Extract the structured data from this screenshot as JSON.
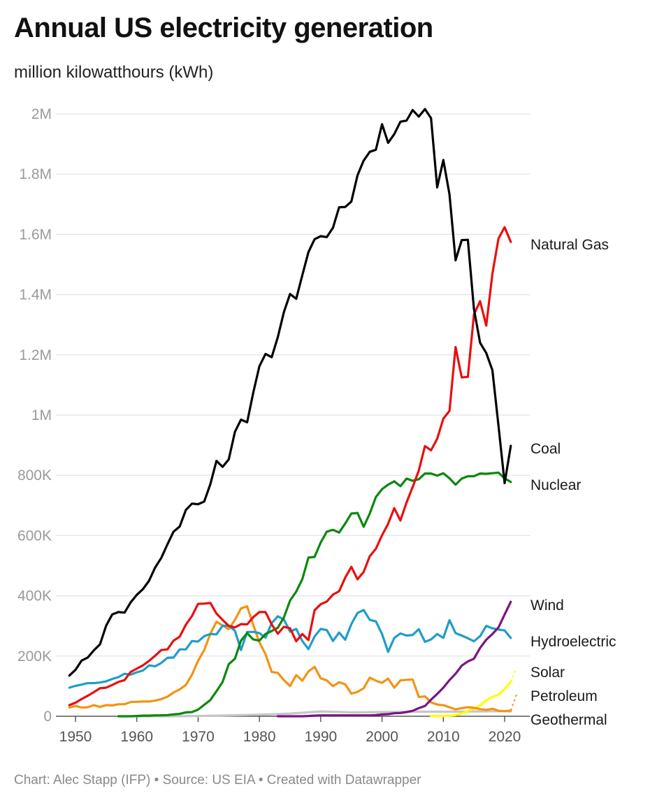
{
  "title": "Annual US electricity generation",
  "subtitle": "million kilowatthours (kWh)",
  "footer": "Chart: Alec Stapp (IFP) • Source: US EIA • Created with Datawrapper",
  "chart_data": {
    "type": "line",
    "title": "Annual US electricity generation",
    "subtitle": "million kilowatthours (kWh)",
    "ylim": [
      0,
      2000000
    ],
    "xlim": [
      1949,
      2021
    ],
    "grid": true,
    "legend": "direct labels at right end of lines",
    "y_ticks": [
      {
        "value": 0,
        "label": "0"
      },
      {
        "value": 200000,
        "label": "200K"
      },
      {
        "value": 400000,
        "label": "400K"
      },
      {
        "value": 600000,
        "label": "600K"
      },
      {
        "value": 800000,
        "label": "800K"
      },
      {
        "value": 1000000,
        "label": "1M"
      },
      {
        "value": 1200000,
        "label": "1.2M"
      },
      {
        "value": 1400000,
        "label": "1.4M"
      },
      {
        "value": 1600000,
        "label": "1.6M"
      },
      {
        "value": 1800000,
        "label": "1.8M"
      },
      {
        "value": 2000000,
        "label": "2M"
      }
    ],
    "x_ticks": [
      {
        "value": 1950,
        "label": "1950"
      },
      {
        "value": 1960,
        "label": "1960"
      },
      {
        "value": 1970,
        "label": "1970"
      },
      {
        "value": 1980,
        "label": "1980"
      },
      {
        "value": 1990,
        "label": "1990"
      },
      {
        "value": 2000,
        "label": "2000"
      },
      {
        "value": 2010,
        "label": "2010"
      },
      {
        "value": 2020,
        "label": "2020"
      }
    ],
    "series": [
      {
        "name": "Coal",
        "color": "#000000",
        "dashed": false,
        "x": [
          1949,
          1950,
          1951,
          1952,
          1953,
          1954,
          1955,
          1956,
          1957,
          1958,
          1959,
          1960,
          1961,
          1962,
          1963,
          1964,
          1965,
          1966,
          1967,
          1968,
          1969,
          1970,
          1971,
          1972,
          1973,
          1974,
          1975,
          1976,
          1977,
          1978,
          1979,
          1980,
          1981,
          1982,
          1983,
          1984,
          1985,
          1986,
          1987,
          1988,
          1989,
          1990,
          1991,
          1992,
          1993,
          1994,
          1995,
          1996,
          1997,
          1998,
          1999,
          2000,
          2001,
          2002,
          2003,
          2004,
          2005,
          2006,
          2007,
          2008,
          2009,
          2010,
          2011,
          2012,
          2013,
          2014,
          2015,
          2016,
          2017,
          2018,
          2019,
          2020,
          2021
        ],
        "y": [
          135000,
          154000,
          185000,
          195000,
          219000,
          239000,
          301000,
          338000,
          346000,
          344000,
          378000,
          403000,
          422000,
          450000,
          494000,
          526000,
          571000,
          613000,
          630000,
          685000,
          706000,
          704000,
          713000,
          771000,
          848000,
          828000,
          853000,
          944000,
          985000,
          976000,
          1075000,
          1162000,
          1203000,
          1192000,
          1259000,
          1342000,
          1402000,
          1386000,
          1464000,
          1541000,
          1584000,
          1594000,
          1591000,
          1622000,
          1690000,
          1691000,
          1709000,
          1796000,
          1845000,
          1874000,
          1881000,
          1966000,
          1904000,
          1933000,
          1974000,
          1978000,
          2013000,
          1991000,
          2016000,
          1986000,
          1756000,
          1847000,
          1733000,
          1514000,
          1581000,
          1582000,
          1352000,
          1240000,
          1206000,
          1149000,
          965000,
          774000,
          898000
        ]
      },
      {
        "name": "Natural Gas",
        "color": "#e80f0f",
        "dashed": false,
        "x": [
          1949,
          1950,
          1951,
          1952,
          1953,
          1954,
          1955,
          1956,
          1957,
          1958,
          1959,
          1960,
          1961,
          1962,
          1963,
          1964,
          1965,
          1966,
          1967,
          1968,
          1969,
          1970,
          1971,
          1972,
          1973,
          1974,
          1975,
          1976,
          1977,
          1978,
          1979,
          1980,
          1981,
          1982,
          1983,
          1984,
          1985,
          1986,
          1987,
          1988,
          1989,
          1990,
          1991,
          1992,
          1993,
          1994,
          1995,
          1996,
          1997,
          1998,
          1999,
          2000,
          2001,
          2002,
          2003,
          2004,
          2005,
          2006,
          2007,
          2008,
          2009,
          2010,
          2011,
          2012,
          2013,
          2014,
          2015,
          2016,
          2017,
          2018,
          2019,
          2020,
          2021
        ],
        "y": [
          37000,
          45000,
          57000,
          68000,
          80000,
          93000,
          95000,
          104000,
          114000,
          120000,
          147000,
          158000,
          169000,
          184000,
          201000,
          220000,
          222000,
          251000,
          264000,
          304000,
          333000,
          373000,
          374000,
          376000,
          341000,
          320000,
          300000,
          295000,
          306000,
          305000,
          329000,
          346000,
          346000,
          305000,
          274000,
          297000,
          292000,
          249000,
          273000,
          253000,
          352000,
          372000,
          381000,
          404000,
          415000,
          460000,
          496000,
          455000,
          479000,
          531000,
          556000,
          601000,
          639000,
          691000,
          650000,
          710000,
          761000,
          816000,
          897000,
          883000,
          921000,
          988000,
          1014000,
          1226000,
          1125000,
          1127000,
          1334000,
          1378000,
          1297000,
          1469000,
          1586000,
          1624000,
          1575000
        ]
      },
      {
        "name": "Nuclear",
        "color": "#0b880b",
        "dashed": false,
        "x": [
          1957,
          1958,
          1959,
          1960,
          1961,
          1962,
          1963,
          1964,
          1965,
          1966,
          1967,
          1968,
          1969,
          1970,
          1971,
          1972,
          1973,
          1974,
          1975,
          1976,
          1977,
          1978,
          1979,
          1980,
          1981,
          1982,
          1983,
          1984,
          1985,
          1986,
          1987,
          1988,
          1989,
          1990,
          1991,
          1992,
          1993,
          1994,
          1995,
          1996,
          1997,
          1998,
          1999,
          2000,
          2001,
          2002,
          2003,
          2004,
          2005,
          2006,
          2007,
          2008,
          2009,
          2010,
          2011,
          2012,
          2013,
          2014,
          2015,
          2016,
          2017,
          2018,
          2019,
          2020,
          2021
        ],
        "y": [
          0,
          0,
          0,
          1000,
          2000,
          2000,
          3000,
          3000,
          4000,
          6000,
          8000,
          13000,
          14000,
          22000,
          38000,
          54000,
          83000,
          114000,
          173000,
          191000,
          251000,
          276000,
          255000,
          251000,
          273000,
          283000,
          294000,
          328000,
          384000,
          414000,
          455000,
          527000,
          529000,
          577000,
          613000,
          619000,
          610000,
          640000,
          673000,
          675000,
          629000,
          673000,
          728000,
          754000,
          769000,
          780000,
          764000,
          789000,
          782000,
          787000,
          806000,
          806000,
          799000,
          807000,
          790000,
          769000,
          789000,
          797000,
          797000,
          806000,
          805000,
          807000,
          809000,
          790000,
          778000
        ]
      },
      {
        "name": "Hydroelectric",
        "color": "#1f9dcb",
        "dashed": false,
        "x": [
          1949,
          1950,
          1951,
          1952,
          1953,
          1954,
          1955,
          1956,
          1957,
          1958,
          1959,
          1960,
          1961,
          1962,
          1963,
          1964,
          1965,
          1966,
          1967,
          1968,
          1969,
          1970,
          1971,
          1972,
          1973,
          1974,
          1975,
          1976,
          1977,
          1978,
          1979,
          1980,
          1981,
          1982,
          1983,
          1984,
          1985,
          1986,
          1987,
          1988,
          1989,
          1990,
          1991,
          1992,
          1993,
          1994,
          1995,
          1996,
          1997,
          1998,
          1999,
          2000,
          2001,
          2002,
          2003,
          2004,
          2005,
          2006,
          2007,
          2008,
          2009,
          2010,
          2011,
          2012,
          2013,
          2014,
          2015,
          2016,
          2017,
          2018,
          2019,
          2020,
          2021
        ],
        "y": [
          95000,
          101000,
          105000,
          110000,
          110000,
          112000,
          116000,
          124000,
          130000,
          141000,
          138000,
          146000,
          152000,
          169000,
          166000,
          177000,
          194000,
          195000,
          222000,
          222000,
          250000,
          248000,
          266000,
          273000,
          272000,
          301000,
          300000,
          284000,
          220000,
          280000,
          280000,
          276000,
          261000,
          309000,
          332000,
          321000,
          281000,
          290000,
          250000,
          223000,
          265000,
          290000,
          286000,
          250000,
          278000,
          254000,
          306000,
          343000,
          353000,
          320000,
          315000,
          273000,
          214000,
          260000,
          275000,
          268000,
          270000,
          289000,
          247000,
          255000,
          273000,
          260000,
          319000,
          276000,
          268000,
          259000,
          249000,
          266000,
          300000,
          292000,
          288000,
          285000,
          260000
        ]
      },
      {
        "name": "Wind",
        "color": "#7a1484",
        "dashed": false,
        "x": [
          1983,
          1984,
          1985,
          1986,
          1987,
          1988,
          1989,
          1990,
          1991,
          1992,
          1993,
          1994,
          1995,
          1996,
          1997,
          1998,
          1999,
          2000,
          2001,
          2002,
          2003,
          2004,
          2005,
          2006,
          2007,
          2008,
          2009,
          2010,
          2011,
          2012,
          2013,
          2014,
          2015,
          2016,
          2017,
          2018,
          2019,
          2020,
          2021
        ],
        "y": [
          0,
          0,
          0,
          0,
          0,
          1000,
          2000,
          3000,
          3000,
          3000,
          3000,
          3000,
          3000,
          3000,
          3000,
          3000,
          4000,
          6000,
          7000,
          10000,
          11000,
          14000,
          18000,
          27000,
          34000,
          55000,
          74000,
          95000,
          120000,
          141000,
          168000,
          182000,
          191000,
          227000,
          254000,
          273000,
          295000,
          338000,
          380000
        ]
      },
      {
        "name": "Solar",
        "color": "#ffff00",
        "dashed": false,
        "x": [
          2008,
          2009,
          2010,
          2011,
          2012,
          2013,
          2014,
          2015,
          2016,
          2017,
          2018,
          2019,
          2020,
          2021
        ],
        "y": [
          1000,
          1000,
          1000,
          2000,
          4000,
          9000,
          18000,
          25000,
          36000,
          53000,
          64000,
          72000,
          91000,
          115000
        ],
        "dashed_end": {
          "x": [
            2021,
            2022
          ],
          "y": [
            115000,
            160000
          ]
        }
      },
      {
        "name": "Petroleum",
        "color": "#f39314",
        "dashed": false,
        "x": [
          1949,
          1950,
          1951,
          1952,
          1953,
          1954,
          1955,
          1956,
          1957,
          1958,
          1959,
          1960,
          1961,
          1962,
          1963,
          1964,
          1965,
          1966,
          1967,
          1968,
          1969,
          1970,
          1971,
          1972,
          1973,
          1974,
          1975,
          1976,
          1977,
          1978,
          1979,
          1980,
          1981,
          1982,
          1983,
          1984,
          1985,
          1986,
          1987,
          1988,
          1989,
          1990,
          1991,
          1992,
          1993,
          1994,
          1995,
          1996,
          1997,
          1998,
          1999,
          2000,
          2001,
          2002,
          2003,
          2004,
          2005,
          2006,
          2007,
          2008,
          2009,
          2010,
          2011,
          2012,
          2013,
          2014,
          2015,
          2016,
          2017,
          2018,
          2019,
          2020,
          2021
        ],
        "y": [
          29000,
          34000,
          29000,
          30000,
          37000,
          31000,
          37000,
          36000,
          40000,
          40000,
          47000,
          48000,
          49000,
          49000,
          52000,
          57000,
          65000,
          79000,
          89000,
          104000,
          138000,
          184000,
          220000,
          274000,
          314000,
          301000,
          289000,
          320000,
          358000,
          365000,
          303000,
          246000,
          206000,
          147000,
          144000,
          120000,
          100000,
          137000,
          118000,
          149000,
          164000,
          126000,
          119000,
          100000,
          113000,
          106000,
          75000,
          81000,
          93000,
          128000,
          118000,
          111000,
          125000,
          95000,
          119000,
          121000,
          122000,
          64000,
          66000,
          46000,
          39000,
          37000,
          30000,
          23000,
          27000,
          30000,
          28000,
          24000,
          21000,
          25000,
          18000,
          17000,
          19000
        ],
        "dashed_end": {
          "x": [
            2021,
            2022
          ],
          "y": [
            19000,
            75000
          ]
        }
      },
      {
        "name": "Geothermal",
        "color": "#c6c6c6",
        "dashed": false,
        "x": [
          1960,
          1965,
          1970,
          1975,
          1980,
          1985,
          1990,
          1995,
          2000,
          2005,
          2010,
          2015,
          2020,
          2021
        ],
        "y": [
          0,
          0,
          1000,
          3000,
          5000,
          9000,
          16000,
          13000,
          14000,
          15000,
          15000,
          16000,
          17000,
          16000
        ]
      }
    ],
    "end_labels": [
      {
        "series": "Natural Gas",
        "text": "Natural Gas"
      },
      {
        "series": "Coal",
        "text": "Coal"
      },
      {
        "series": "Nuclear",
        "text": "Nuclear"
      },
      {
        "series": "Wind",
        "text": "Wind"
      },
      {
        "series": "Hydroelectric",
        "text": "Hydroelectric"
      },
      {
        "series": "Solar",
        "text": "Solar"
      },
      {
        "series": "Petroleum",
        "text": "Petroleum"
      },
      {
        "series": "Geothermal",
        "text": "Geothermal"
      }
    ]
  }
}
